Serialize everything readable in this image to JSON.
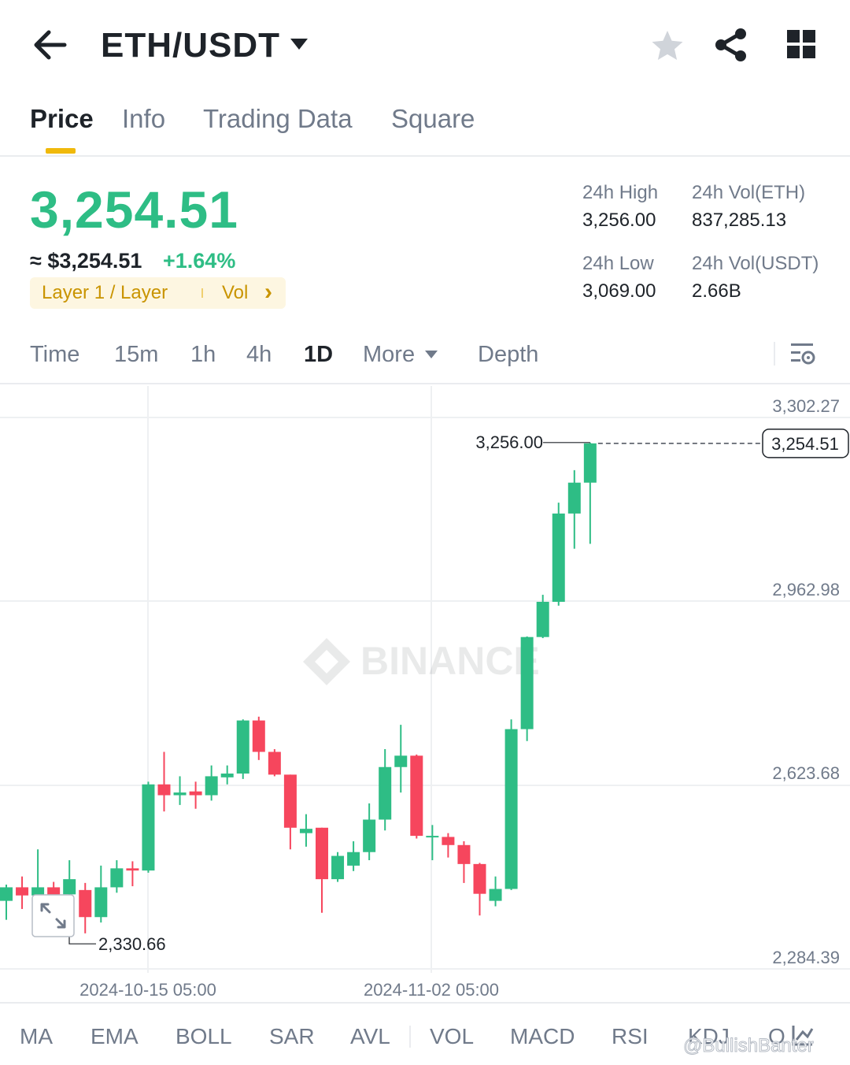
{
  "header": {
    "back_icon": "arrow-left-icon",
    "pair": "ETH/USDT",
    "caret_icon": "caret-down-icon",
    "favorite_icon": "star-icon",
    "share_icon": "share-icon",
    "menu_icon": "grid-icon"
  },
  "tabs": [
    {
      "label": "Price",
      "active": true
    },
    {
      "label": "Info",
      "active": false
    },
    {
      "label": "Trading Data",
      "active": false
    },
    {
      "label": "Square",
      "active": false
    }
  ],
  "ticker": {
    "last_price": "3,254.51",
    "usd_price": "≈ $3,254.51",
    "change": "+1.64%",
    "tag_category": "Layer 1 / Layer",
    "tag_vol": "Vol",
    "tag_arrow": "›",
    "high_label": "24h High",
    "high_value": "3,256.00",
    "low_label": "24h Low",
    "low_value": "3,069.00",
    "vol_base_label": "24h Vol(ETH)",
    "vol_base_value": "837,285.13",
    "vol_quote_label": "24h Vol(USDT)",
    "vol_quote_value": "2.66B"
  },
  "intervals": {
    "items": [
      "Time",
      "15m",
      "1h",
      "4h",
      "1D"
    ],
    "active": "1D",
    "more": "More",
    "depth": "Depth",
    "settings_icon": "chart-settings-icon"
  },
  "chart_data": {
    "type": "candlestick",
    "up_color": "#2ebd85",
    "down_color": "#f6465d",
    "y_ticks": [
      "3,302.27",
      "2,962.98",
      "2,623.68",
      "2,284.39"
    ],
    "y_tick_values": [
      3302.27,
      2962.98,
      2623.68,
      2284.39
    ],
    "x_ticks": [
      "2024-10-15 05:00",
      "2024-11-02 05:00"
    ],
    "current_price": "3,254.51",
    "current_price_value": 3254.51,
    "max_label": "3,256.00",
    "max_value": 3256.0,
    "min_label": "2,330.66",
    "min_value": 2330.66,
    "watermark": "BINANCE",
    "expand_icon": "expand-icon",
    "candles": [
      {
        "o": 2410,
        "h": 2440,
        "l": 2375,
        "c": 2435
      },
      {
        "o": 2435,
        "h": 2455,
        "l": 2395,
        "c": 2420
      },
      {
        "o": 2420,
        "h": 2505,
        "l": 2400,
        "c": 2435
      },
      {
        "o": 2435,
        "h": 2445,
        "l": 2405,
        "c": 2420
      },
      {
        "o": 2422,
        "h": 2485,
        "l": 2400,
        "c": 2450
      },
      {
        "o": 2430,
        "h": 2443,
        "l": 2350,
        "c": 2380
      },
      {
        "o": 2380,
        "h": 2475,
        "l": 2370,
        "c": 2435
      },
      {
        "o": 2435,
        "h": 2485,
        "l": 2425,
        "c": 2470
      },
      {
        "o": 2470,
        "h": 2483,
        "l": 2437,
        "c": 2466
      },
      {
        "o": 2466,
        "h": 2630,
        "l": 2462,
        "c": 2625
      },
      {
        "o": 2625,
        "h": 2685,
        "l": 2575,
        "c": 2605
      },
      {
        "o": 2605,
        "h": 2640,
        "l": 2587,
        "c": 2610
      },
      {
        "o": 2612,
        "h": 2630,
        "l": 2580,
        "c": 2605
      },
      {
        "o": 2605,
        "h": 2660,
        "l": 2595,
        "c": 2640
      },
      {
        "o": 2638,
        "h": 2660,
        "l": 2625,
        "c": 2645
      },
      {
        "o": 2645,
        "h": 2745,
        "l": 2635,
        "c": 2743
      },
      {
        "o": 2743,
        "h": 2750,
        "l": 2670,
        "c": 2685
      },
      {
        "o": 2685,
        "h": 2690,
        "l": 2640,
        "c": 2643
      },
      {
        "o": 2643,
        "h": 2643,
        "l": 2505,
        "c": 2545
      },
      {
        "o": 2535,
        "h": 2570,
        "l": 2510,
        "c": 2543
      },
      {
        "o": 2545,
        "h": 2545,
        "l": 2388,
        "c": 2450
      },
      {
        "o": 2450,
        "h": 2500,
        "l": 2445,
        "c": 2493
      },
      {
        "o": 2475,
        "h": 2520,
        "l": 2465,
        "c": 2500
      },
      {
        "o": 2500,
        "h": 2590,
        "l": 2485,
        "c": 2560
      },
      {
        "o": 2560,
        "h": 2690,
        "l": 2540,
        "c": 2657
      },
      {
        "o": 2657,
        "h": 2735,
        "l": 2610,
        "c": 2678
      },
      {
        "o": 2678,
        "h": 2680,
        "l": 2525,
        "c": 2530
      },
      {
        "o": 2530,
        "h": 2550,
        "l": 2485,
        "c": 2530
      },
      {
        "o": 2528,
        "h": 2535,
        "l": 2490,
        "c": 2513
      },
      {
        "o": 2513,
        "h": 2520,
        "l": 2443,
        "c": 2478
      },
      {
        "o": 2478,
        "h": 2480,
        "l": 2383,
        "c": 2423
      },
      {
        "o": 2410,
        "h": 2455,
        "l": 2400,
        "c": 2432
      },
      {
        "o": 2432,
        "h": 2745,
        "l": 2430,
        "c": 2727
      },
      {
        "o": 2727,
        "h": 2898,
        "l": 2705,
        "c": 2897
      },
      {
        "o": 2897,
        "h": 2975,
        "l": 2895,
        "c": 2962
      },
      {
        "o": 2962,
        "h": 3145,
        "l": 2955,
        "c": 3125
      },
      {
        "o": 3125,
        "h": 3205,
        "l": 3060,
        "c": 3182
      },
      {
        "o": 3182,
        "h": 3256,
        "l": 3069,
        "c": 3254.51
      }
    ]
  },
  "indicators": [
    "MA",
    "EMA",
    "BOLL",
    "SAR",
    "AVL",
    "VOL",
    "MACD",
    "RSI",
    "KDJ",
    "O"
  ],
  "indicator_edit_icon": "indicator-edit-icon",
  "watermark_user": "@BullishBanter"
}
